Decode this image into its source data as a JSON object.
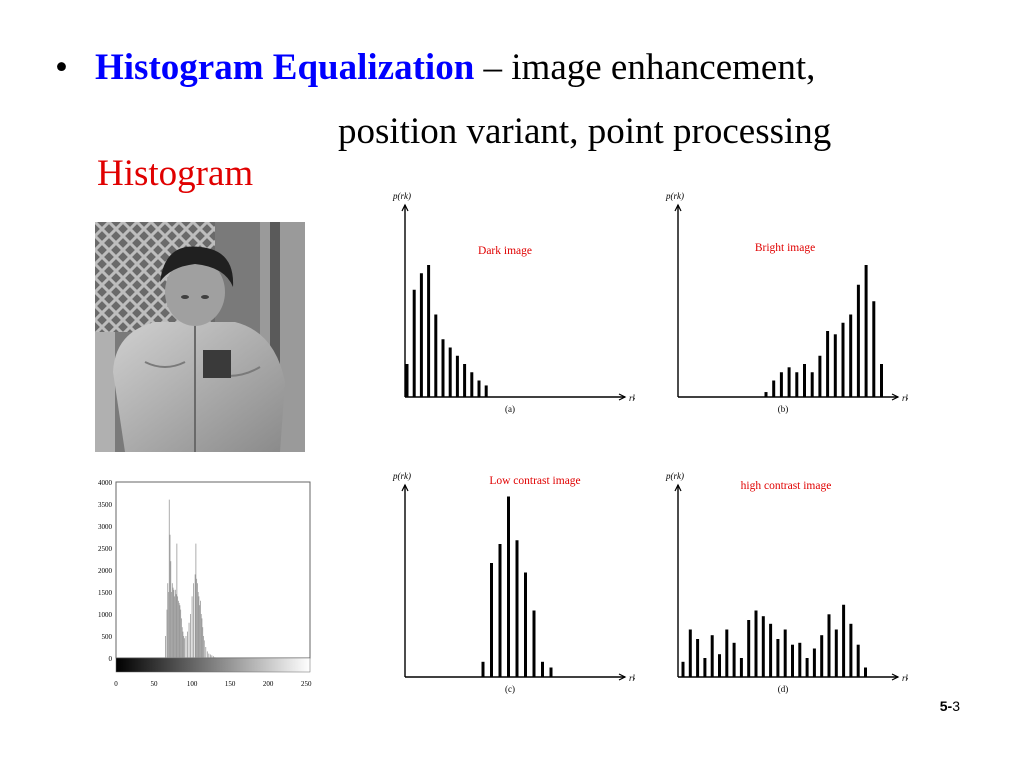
{
  "slide": {
    "bullet": "•",
    "title_keyword": "Histogram Equalization",
    "title_rest": " – image enhancement,",
    "title_line2": "position variant, point processing",
    "heading": "Histogram",
    "page_number_prefix": "5-",
    "page_number": "3"
  },
  "colors": {
    "keyword": "#0000ff",
    "heading": "#e00000",
    "panel_label": "#e00000"
  },
  "photo": {
    "icon": "grayscale-photo-child-in-jacket"
  },
  "chart_data": [
    {
      "type": "bar",
      "title": "",
      "y_ticks": [
        "4000",
        "3500",
        "3000",
        "2500",
        "2000",
        "1500",
        "1000",
        "500",
        "0"
      ],
      "x_ticks": [
        "0",
        "50",
        "100",
        "150",
        "200",
        "250"
      ],
      "ylim": [
        0,
        4000
      ],
      "xlim": [
        0,
        255
      ],
      "grayscale_bar": true,
      "series": [
        {
          "x": [
            65,
            67,
            68,
            69,
            70,
            71,
            72,
            73,
            74,
            75,
            76,
            77,
            78,
            79,
            80,
            81,
            82,
            83,
            84,
            85,
            86,
            87,
            88,
            89,
            90,
            92,
            94,
            96,
            98,
            100,
            102,
            104,
            105,
            106,
            107,
            108,
            109,
            110,
            111,
            112,
            113,
            114,
            115,
            116,
            118,
            120,
            122,
            124,
            126,
            128,
            130
          ],
          "values": [
            500,
            1100,
            1700,
            1500,
            3600,
            2800,
            2200,
            1500,
            1700,
            1600,
            1550,
            1400,
            1550,
            1450,
            2600,
            1400,
            1300,
            1250,
            1200,
            1100,
            900,
            700,
            600,
            500,
            450,
            500,
            600,
            800,
            1000,
            1400,
            1700,
            1900,
            2600,
            1800,
            1700,
            1500,
            1400,
            1200,
            1300,
            1000,
            900,
            700,
            500,
            400,
            250,
            150,
            100,
            80,
            60,
            40,
            20
          ]
        }
      ]
    },
    {
      "type": "bar",
      "title": "Dark image",
      "ylabel": "p(rk)",
      "xlabel": "rk",
      "caption": "(a)",
      "values": [
        0.2,
        0.65,
        0.75,
        0.8,
        0.5,
        0.35,
        0.3,
        0.25,
        0.2,
        0.15,
        0.1,
        0.07
      ]
    },
    {
      "type": "bar",
      "title": "Bright image",
      "ylabel": "p(rk)",
      "xlabel": "rk",
      "caption": "(b)",
      "values": [
        0.03,
        0.1,
        0.15,
        0.18,
        0.15,
        0.2,
        0.15,
        0.25,
        0.4,
        0.38,
        0.45,
        0.5,
        0.68,
        0.8,
        0.58,
        0.2
      ]
    },
    {
      "type": "bar",
      "title": "Low contrast image",
      "ylabel": "p(rk)",
      "xlabel": "rk",
      "caption": "(c)",
      "values": [
        0.08,
        0.6,
        0.7,
        0.95,
        0.72,
        0.55,
        0.35,
        0.08,
        0.05
      ]
    },
    {
      "type": "bar",
      "title": "high contrast image",
      "ylabel": "p(rk)",
      "xlabel": "rk",
      "caption": "(d)",
      "values": [
        0.08,
        0.25,
        0.2,
        0.1,
        0.22,
        0.12,
        0.25,
        0.18,
        0.1,
        0.3,
        0.35,
        0.32,
        0.28,
        0.2,
        0.25,
        0.17,
        0.18,
        0.1,
        0.15,
        0.22,
        0.33,
        0.25,
        0.38,
        0.28,
        0.17,
        0.05
      ]
    }
  ]
}
